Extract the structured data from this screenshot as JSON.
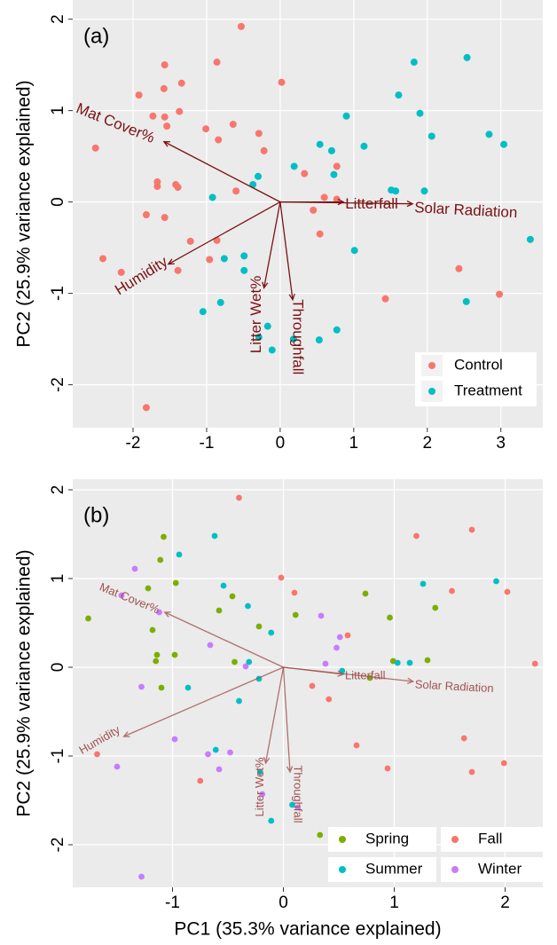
{
  "chart_data": [
    {
      "type": "biplot",
      "panel_label": "(a)",
      "ylabel": "PC2 (25.9% variance explained)",
      "xlim": [
        -2.82,
        3.57
      ],
      "ylim": [
        -2.47,
        2.21
      ],
      "xticks": [
        -2,
        -1,
        0,
        1,
        2,
        3
      ],
      "yticks": [
        -2,
        -1,
        0,
        1,
        2
      ],
      "grid": true,
      "legend": "bottom-right",
      "series": [
        {
          "name": "Control",
          "color": "#F8766D",
          "x": [
            -0.53,
            -1.57,
            -0.86,
            0.02,
            -1.34,
            -1.58,
            -1.92,
            -1.73,
            -1.37,
            -1.01,
            -0.64,
            -0.29,
            -2.51,
            -1.57,
            -1.54,
            -0.22,
            -0.84,
            0.77,
            -1.67,
            -1.67,
            -1.42,
            -1.39,
            -0.6,
            0.33,
            0.6,
            0.77,
            -1.82,
            -1.57,
            0.45,
            0.54,
            -1.22,
            -0.86,
            -2.41,
            -2.16,
            -0.96,
            -1.39,
            2.43,
            2.98,
            1.43,
            -1.82
          ],
          "y": [
            1.92,
            1.5,
            1.53,
            1.31,
            1.3,
            1.24,
            1.17,
            0.94,
            0.99,
            0.8,
            0.85,
            0.75,
            0.59,
            0.93,
            0.83,
            0.56,
            0.68,
            0.39,
            0.22,
            0.17,
            0.19,
            0.16,
            0.12,
            0.31,
            0.05,
            0.03,
            -0.14,
            -0.17,
            -0.09,
            -0.35,
            -0.43,
            -0.42,
            -0.62,
            -0.77,
            -0.63,
            -0.75,
            -0.73,
            -1.01,
            -1.06,
            -2.25
          ]
        },
        {
          "name": "Treatment",
          "color": "#00BFC4",
          "x": [
            1.82,
            2.54,
            1.61,
            1.9,
            0.9,
            2.84,
            2.06,
            0.54,
            1.14,
            0.7,
            3.04,
            0.19,
            0.73,
            -0.3,
            -0.37,
            -0.92,
            1.51,
            1.57,
            1.96,
            3.4,
            1.01,
            -0.76,
            -0.49,
            -0.49,
            -0.81,
            -1.05,
            -0.17,
            -0.29,
            -0.11,
            0.18,
            0.53,
            0.77,
            2.53
          ],
          "y": [
            1.53,
            1.58,
            1.17,
            0.97,
            0.94,
            0.74,
            0.72,
            0.63,
            0.61,
            0.56,
            0.63,
            0.39,
            0.3,
            0.28,
            0.19,
            0.05,
            0.13,
            0.12,
            0.12,
            -0.41,
            -0.53,
            -0.62,
            -0.59,
            -0.75,
            -1.1,
            -1.2,
            -1.36,
            -1.48,
            -1.62,
            -1.5,
            -1.51,
            -1.4,
            -1.09
          ]
        }
      ],
      "loadings": {
        "color": "#7B1113",
        "names": [
          "Mat Cover%",
          "Humidity",
          "Litter Wet%",
          "Throughfall",
          "Litterfall",
          "Solar Radiation"
        ],
        "x": [
          -1.58,
          -1.52,
          -0.22,
          0.17,
          0.86,
          1.8
        ],
        "y": [
          0.66,
          -0.68,
          -0.94,
          -1.07,
          0,
          -0.02
        ]
      }
    },
    {
      "type": "biplot",
      "panel_label": "(b)",
      "ylabel": "PC2 (25.9% variance explained)",
      "xlabel": "PC1 (35.3% variance explained)",
      "xlim": [
        -1.9,
        2.34
      ],
      "ylim": [
        -2.48,
        2.12
      ],
      "xticks": [
        -1,
        0,
        1,
        2
      ],
      "yticks": [
        -2,
        -1,
        0,
        1,
        2
      ],
      "grid": true,
      "legend": "bottom-right",
      "series": [
        {
          "name": "Spring",
          "color": "#7CAE00",
          "x": [
            -1.76,
            -1.08,
            -1.11,
            -1.22,
            -0.97,
            -1.18,
            -1.14,
            -1.15,
            -0.98,
            -1.1,
            -0.46,
            -0.58,
            -0.22,
            -0.44,
            0.11,
            0.74,
            0.96,
            1.37,
            1.3,
            0.99,
            0.78,
            0.33,
            0.49
          ],
          "y": [
            0.55,
            1.47,
            1.21,
            0.89,
            0.95,
            0.42,
            0.14,
            0.07,
            0.14,
            -0.23,
            0.8,
            0.64,
            0.46,
            0.06,
            0.59,
            0.83,
            0.56,
            0.67,
            0.08,
            0.07,
            -0.12,
            -1.89,
            -1.84
          ]
        },
        {
          "name": "Summer",
          "color": "#00BFC4",
          "x": [
            -0.62,
            -0.94,
            -0.54,
            -0.32,
            -0.11,
            1.26,
            1.92,
            1.14,
            1.03,
            0.53,
            -0.31,
            -0.86,
            -0.22,
            -0.4,
            -0.61,
            -0.21,
            0.08,
            -0.11
          ],
          "y": [
            1.48,
            1.27,
            0.92,
            0.69,
            0.39,
            0.94,
            0.97,
            0.05,
            0.05,
            -0.04,
            0.06,
            -0.23,
            -0.13,
            -0.38,
            -0.93,
            -1.18,
            -1.55,
            -1.73
          ]
        },
        {
          "name": "Fall",
          "color": "#F8766D",
          "x": [
            -0.4,
            -0.02,
            0.1,
            0.58,
            1.2,
            1.52,
            1.7,
            2.02,
            2.27,
            -1.68,
            -0.75,
            0.26,
            0.41,
            0.66,
            0.94,
            1.63,
            1.7,
            1.99
          ],
          "y": [
            1.91,
            1.01,
            0.84,
            0.36,
            1.48,
            0.86,
            1.55,
            0.85,
            0.04,
            -0.98,
            -1.28,
            -0.21,
            -0.36,
            -0.88,
            -1.14,
            -0.8,
            -1.18,
            -1.08
          ]
        },
        {
          "name": "Winter",
          "color": "#C77CFF",
          "x": [
            -1.34,
            -1.46,
            -1.12,
            0.34,
            0.51,
            0.48,
            0.38,
            -0.34,
            -0.66,
            -1.28,
            -1.5,
            -0.98,
            -0.68,
            -0.48,
            -0.58,
            -0.19,
            0.13,
            -1.28
          ],
          "y": [
            1.11,
            0.81,
            0.62,
            0.58,
            0.34,
            0.22,
            0.04,
            0.01,
            0.25,
            -0.22,
            -1.12,
            -0.81,
            -0.98,
            -0.96,
            -1.15,
            -1.43,
            -1.58,
            -2.36
          ]
        }
      ],
      "loadings": {
        "color": "#A0524F",
        "names": [
          "Mat Cover%",
          "Humidity",
          "Litter Wet%",
          "Throughfall",
          "Litterfall",
          "Solar Radiation"
        ],
        "x": [
          -1.07,
          -1.44,
          -0.16,
          0.06,
          0.54,
          1.17
        ],
        "y": [
          0.62,
          -0.78,
          -1.08,
          -1.18,
          -0.08,
          -0.16
        ]
      }
    }
  ]
}
